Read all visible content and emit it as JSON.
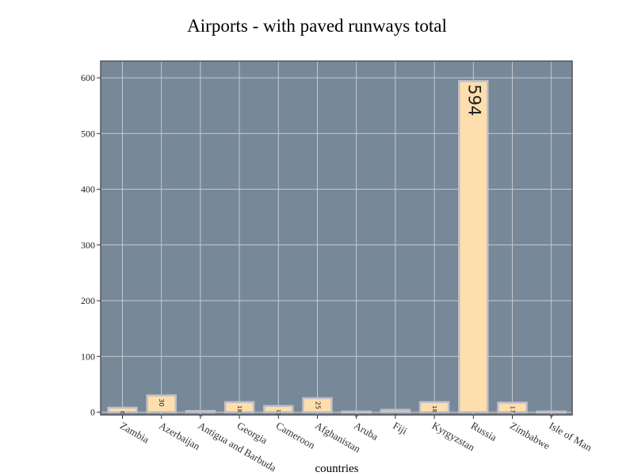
{
  "chart_data": {
    "type": "bar",
    "title": "Airports - with paved runways total",
    "xlabel": "countries",
    "ylabel": "",
    "categories": [
      "Zambia",
      "Azerbaijan",
      "Antigua and Barbuda",
      "Georgia",
      "Cameroon",
      "Afghanistan",
      "Aruba",
      "Fiji",
      "Kyrgyzstan",
      "Russia",
      "Zimbabwe",
      "Isle of Man"
    ],
    "values": [
      8,
      30,
      2,
      18,
      11,
      25,
      1,
      4,
      18,
      594,
      17,
      1
    ],
    "data_labels": [
      "8",
      "30",
      "2",
      "18",
      "11",
      "25",
      "1",
      "4",
      "18",
      "594",
      "17",
      "1"
    ],
    "yticks": [
      0,
      100,
      200,
      300,
      400,
      500,
      600
    ],
    "ylim": [
      -5,
      630
    ],
    "grid": true,
    "colors": {
      "plot_background": "#778899",
      "bar_fill": "#ffdead",
      "bar_edge": "#c0c0c8",
      "grid": "#c8c8cc",
      "frame": "#555555"
    }
  }
}
